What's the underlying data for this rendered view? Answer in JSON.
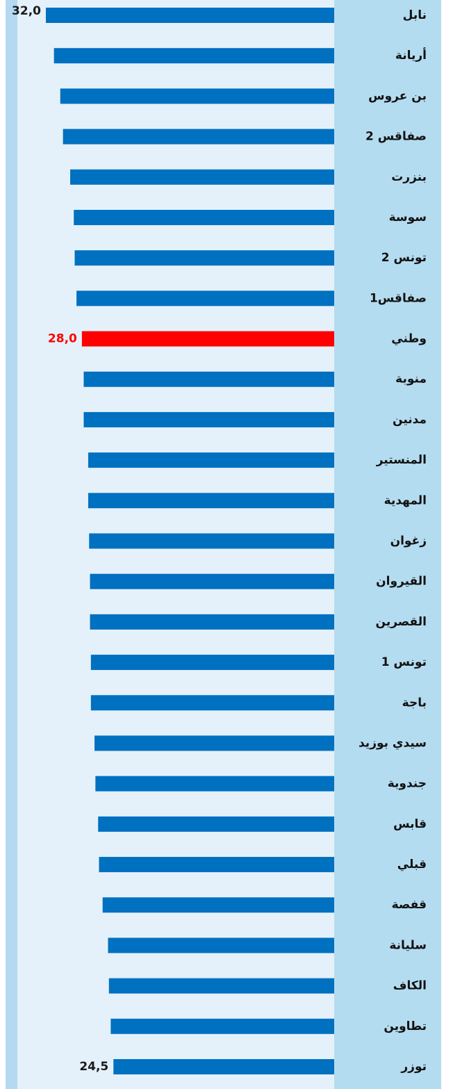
{
  "chart_data": {
    "type": "barh",
    "categories": [
      "نابل",
      "أريانة",
      "بن عروس",
      "صفاقس 2",
      "بنزرت",
      "سوسة",
      "تونس 2",
      "صفاقس1",
      "وطني",
      "منوبة",
      "مدنين",
      "المنستير",
      "المهدية",
      "زغوان",
      "القيروان",
      "القصرين",
      "تونس 1",
      "باجة",
      "سيدي بوزيد",
      "جندوبة",
      "قابس",
      "قبلي",
      "قفصة",
      "سليانة",
      "الكاف",
      "تطاوين",
      "توزر"
    ],
    "values": [
      32.0,
      31.1,
      30.4,
      30.1,
      29.3,
      28.9,
      28.8,
      28.6,
      28.0,
      27.8,
      27.8,
      27.3,
      27.3,
      27.2,
      27.1,
      27.1,
      27.0,
      27.0,
      26.6,
      26.5,
      26.2,
      26.1,
      25.7,
      25.1,
      25.0,
      24.8,
      24.5
    ],
    "value_labels": [
      "32,0",
      null,
      null,
      null,
      null,
      null,
      null,
      null,
      "28,0",
      null,
      null,
      null,
      null,
      null,
      null,
      null,
      null,
      null,
      null,
      null,
      null,
      null,
      null,
      null,
      null,
      null,
      "24,5"
    ],
    "color": "#0070c0",
    "colors": [
      "#0070c0",
      "#0070c0",
      "#0070c0",
      "#0070c0",
      "#0070c0",
      "#0070c0",
      "#0070c0",
      "#0070c0",
      "#ff0000",
      "#0070c0",
      "#0070c0",
      "#0070c0",
      "#0070c0",
      "#0070c0",
      "#0070c0",
      "#0070c0",
      "#0070c0",
      "#0070c0",
      "#0070c0",
      "#0070c0",
      "#0070c0",
      "#0070c0",
      "#0070c0",
      "#0070c0",
      "#0070c0",
      "#0070c0",
      "#0070c0"
    ]
  }
}
